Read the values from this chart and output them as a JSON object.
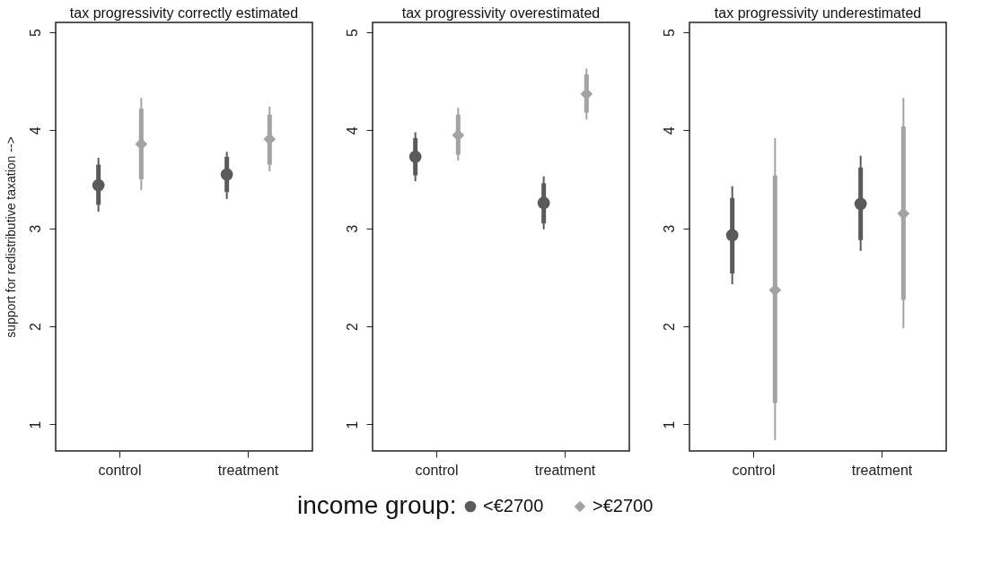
{
  "chart_data": [
    {
      "type": "scatter",
      "title": "tax progressivity correctly estimated",
      "ylabel": "support for redistributive taxation -->",
      "categories": [
        "control",
        "treatment"
      ],
      "ylim": [
        0.73,
        5.1
      ],
      "yticks": [
        1,
        2,
        3,
        4,
        5
      ],
      "legend": "bottom",
      "legend_title": "income group:",
      "series": [
        {
          "name": "<€2700",
          "color": "#5a5a5a",
          "marker": "circle",
          "values": [
            3.44,
            3.55
          ],
          "errors": [
            [
              3.17,
              3.72
            ],
            [
              3.3,
              3.78
            ]
          ]
        },
        {
          "name": ">€2700",
          "color": "#a3a3a3",
          "marker": "diamond",
          "values": [
            3.86,
            3.91
          ],
          "errors": [
            [
              3.39,
              4.33
            ],
            [
              3.58,
              4.24
            ]
          ]
        },
        {
          "type": "bar",
          "color": "#5a5a5a",
          "base": [
            3.24,
            3.37
          ],
          "values": [
            0.41,
            0.36
          ]
        },
        {
          "type": "bar",
          "color": "#a3a3a3",
          "base": [
            3.5,
            3.65
          ],
          "values": [
            0.72,
            0.51
          ]
        }
      ]
    },
    {
      "type": "scatter",
      "title": "tax progressivity overestimated",
      "categories": [
        "control",
        "treatment"
      ],
      "ylim": [
        0.73,
        5.1
      ],
      "yticks": [
        1,
        2,
        3,
        4,
        5
      ],
      "series": [
        {
          "color": "#5a5a5a",
          "marker": "circle",
          "values": [
            3.73,
            3.26
          ],
          "errors": [
            [
              3.48,
              3.98
            ],
            [
              2.99,
              3.53
            ]
          ]
        },
        {
          "color": "#a3a3a3",
          "marker": "diamond",
          "values": [
            3.95,
            4.37
          ],
          "errors": [
            [
              3.69,
              4.23
            ],
            [
              4.11,
              4.63
            ]
          ]
        },
        {
          "type": "bar",
          "color": "#5a5a5a",
          "base": [
            3.54,
            3.05
          ],
          "values": [
            0.38,
            0.41
          ]
        },
        {
          "type": "bar",
          "color": "#a3a3a3",
          "base": [
            3.75,
            4.18
          ],
          "values": [
            0.41,
            0.39
          ]
        }
      ]
    },
    {
      "type": "scatter",
      "title": "tax progressivity underestimated",
      "categories": [
        "control",
        "treatment"
      ],
      "ylim": [
        0.73,
        5.1
      ],
      "yticks": [
        1,
        2,
        3,
        4,
        5
      ],
      "series": [
        {
          "color": "#5a5a5a",
          "marker": "circle",
          "values": [
            2.93,
            3.25
          ],
          "errors": [
            [
              2.43,
              3.43
            ],
            [
              2.77,
              3.74
            ]
          ]
        },
        {
          "color": "#a3a3a3",
          "marker": "diamond",
          "values": [
            2.37,
            3.15
          ],
          "errors": [
            [
              0.84,
              3.92
            ],
            [
              1.98,
              4.33
            ]
          ]
        },
        {
          "type": "bar",
          "color": "#5a5a5a",
          "base": [
            2.54,
            2.88
          ],
          "values": [
            0.77,
            0.74
          ]
        },
        {
          "type": "bar",
          "color": "#a3a3a3",
          "base": [
            1.22,
            2.27
          ],
          "values": [
            2.32,
            1.77
          ]
        }
      ]
    }
  ]
}
